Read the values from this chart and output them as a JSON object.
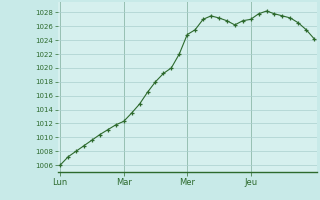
{
  "background_color": "#c8eae8",
  "plot_bg_color": "#d6f0ee",
  "line_color": "#2d6a2d",
  "marker_color": "#2d6a2d",
  "grid_color": "#aacfcd",
  "tick_color": "#2d6a2d",
  "axis_color": "#2d6a2d",
  "x_tick_labels": [
    "Lun",
    "Mar",
    "Mer",
    "Jeu"
  ],
  "x_tick_positions": [
    0,
    24,
    48,
    72
  ],
  "ylim": [
    1005.0,
    1029.5
  ],
  "yticks": [
    1006,
    1008,
    1010,
    1012,
    1014,
    1016,
    1018,
    1020,
    1022,
    1024,
    1026,
    1028
  ],
  "xlim": [
    -1,
    97
  ],
  "data_x": [
    0,
    3,
    6,
    9,
    12,
    15,
    18,
    21,
    24,
    27,
    30,
    33,
    36,
    39,
    42,
    45,
    48,
    51,
    54,
    57,
    60,
    63,
    66,
    69,
    72,
    75,
    78,
    81,
    84,
    87,
    90,
    93,
    96
  ],
  "data_y": [
    1006.0,
    1007.2,
    1008.0,
    1008.8,
    1009.6,
    1010.4,
    1011.1,
    1011.8,
    1012.3,
    1013.5,
    1014.8,
    1016.5,
    1018.0,
    1019.2,
    1020.0,
    1022.0,
    1024.8,
    1025.5,
    1027.0,
    1027.5,
    1027.2,
    1026.8,
    1026.2,
    1026.8,
    1027.0,
    1027.8,
    1028.2,
    1027.8,
    1027.5,
    1027.2,
    1026.5,
    1025.5,
    1024.2
  ]
}
